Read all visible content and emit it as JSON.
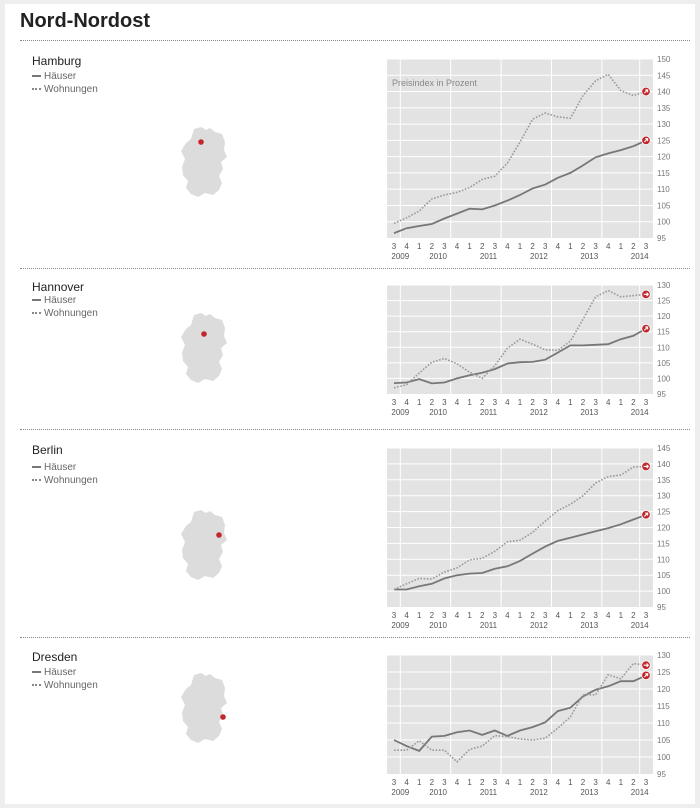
{
  "page": {
    "title": "Nord-Nordost"
  },
  "legend": {
    "houses": "Häuser",
    "flats": "Wohnungen"
  },
  "colors": {
    "houses_line": "#777777",
    "flats_line": "#999999",
    "marker": "#c1272d",
    "plot_bg": "#e3e3e3",
    "map": "#dcdcdc"
  },
  "x_tick_labels": [
    "3",
    "4",
    "1",
    "2",
    "3",
    "4",
    "1",
    "2",
    "3",
    "4",
    "1",
    "2",
    "3",
    "4",
    "1",
    "2",
    "3",
    "4",
    "1",
    "2",
    "3"
  ],
  "x_year_labels": [
    "2009",
    "2010",
    "2011",
    "2012",
    "2013",
    "2014"
  ],
  "chart_data": [
    {
      "type": "line",
      "title": "Hamburg",
      "ylabel": "Preisindex in Prozent",
      "ylim": [
        95,
        150
      ],
      "yticks": [
        95,
        100,
        105,
        110,
        115,
        120,
        125,
        130,
        135,
        140,
        145,
        150
      ],
      "x": [
        "2009-Q3",
        "2009-Q4",
        "2010-Q1",
        "2010-Q2",
        "2010-Q3",
        "2010-Q4",
        "2011-Q1",
        "2011-Q2",
        "2011-Q3",
        "2011-Q4",
        "2012-Q1",
        "2012-Q2",
        "2012-Q3",
        "2012-Q4",
        "2013-Q1",
        "2013-Q2",
        "2013-Q3",
        "2013-Q4",
        "2014-Q1",
        "2014-Q2",
        "2014-Q3"
      ],
      "series": [
        {
          "name": "Häuser",
          "style": "solid",
          "values": [
            96.5,
            98,
            98.7,
            99.3,
            101,
            102.5,
            104,
            103.8,
            105,
            106.5,
            108.2,
            110.2,
            111.4,
            113.5,
            115,
            117.3,
            119.8,
            121,
            122,
            123.2,
            125
          ]
        },
        {
          "name": "Wohnungen",
          "style": "dotted",
          "values": [
            99.5,
            101.2,
            103.3,
            107,
            108.2,
            109,
            110.5,
            113,
            114,
            118,
            124.5,
            131.5,
            133.4,
            132.2,
            131.8,
            138.8,
            143.3,
            145.3,
            140.3,
            138.8,
            140
          ]
        }
      ]
    },
    {
      "type": "line",
      "title": "Hannover",
      "ylim": [
        95,
        130
      ],
      "yticks": [
        95,
        100,
        105,
        110,
        115,
        120,
        125,
        130
      ],
      "x": [
        "2009-Q3",
        "2009-Q4",
        "2010-Q1",
        "2010-Q2",
        "2010-Q3",
        "2010-Q4",
        "2011-Q1",
        "2011-Q2",
        "2011-Q3",
        "2011-Q4",
        "2012-Q1",
        "2012-Q2",
        "2012-Q3",
        "2012-Q4",
        "2013-Q1",
        "2013-Q2",
        "2013-Q3",
        "2013-Q4",
        "2014-Q1",
        "2014-Q2",
        "2014-Q3"
      ],
      "series": [
        {
          "name": "Häuser",
          "style": "solid",
          "values": [
            98.5,
            98.7,
            99.8,
            98.4,
            98.7,
            100,
            101,
            101.8,
            103,
            104.8,
            105.2,
            105.3,
            106,
            108.3,
            110.6,
            110.6,
            110.8,
            111,
            112.6,
            113.7,
            116
          ]
        },
        {
          "name": "Wohnungen",
          "style": "dotted",
          "values": [
            97,
            98,
            101.7,
            105.2,
            106.4,
            104.7,
            102,
            100,
            104.1,
            109.7,
            112.6,
            111,
            109.2,
            109,
            112,
            119,
            126.2,
            128.2,
            126.2,
            126.6,
            127
          ]
        }
      ]
    },
    {
      "type": "line",
      "title": "Berlin",
      "ylim": [
        95,
        145
      ],
      "yticks": [
        95,
        100,
        105,
        110,
        115,
        120,
        125,
        130,
        135,
        140,
        145
      ],
      "x": [
        "2009-Q3",
        "2009-Q4",
        "2010-Q1",
        "2010-Q2",
        "2010-Q3",
        "2010-Q4",
        "2011-Q1",
        "2011-Q2",
        "2011-Q3",
        "2011-Q4",
        "2012-Q1",
        "2012-Q2",
        "2012-Q3",
        "2012-Q4",
        "2013-Q1",
        "2013-Q2",
        "2013-Q3",
        "2013-Q4",
        "2014-Q1",
        "2014-Q2",
        "2014-Q3"
      ],
      "series": [
        {
          "name": "Häuser",
          "style": "solid",
          "values": [
            100.5,
            100.5,
            101.5,
            102.3,
            104,
            105,
            105.5,
            105.7,
            107,
            107.8,
            109.5,
            111.8,
            114,
            115.8,
            116.8,
            117.8,
            118.8,
            119.8,
            121,
            122.5,
            124
          ]
        },
        {
          "name": "Wohnungen",
          "style": "dotted",
          "values": [
            100.5,
            102.3,
            104,
            103.8,
            106,
            107.3,
            109.8,
            110.3,
            112.5,
            115.5,
            116,
            118.5,
            122,
            125.3,
            127.3,
            130,
            134,
            136,
            136.5,
            139,
            139.2
          ]
        }
      ]
    },
    {
      "type": "line",
      "title": "Dresden",
      "ylim": [
        95,
        130
      ],
      "yticks": [
        95,
        100,
        105,
        110,
        115,
        120,
        125,
        130
      ],
      "x": [
        "2009-Q3",
        "2009-Q4",
        "2010-Q1",
        "2010-Q2",
        "2010-Q3",
        "2010-Q4",
        "2011-Q1",
        "2011-Q2",
        "2011-Q3",
        "2011-Q4",
        "2012-Q1",
        "2012-Q2",
        "2012-Q3",
        "2012-Q4",
        "2013-Q1",
        "2013-Q2",
        "2013-Q3",
        "2013-Q4",
        "2014-Q1",
        "2014-Q2",
        "2014-Q3"
      ],
      "series": [
        {
          "name": "Häuser",
          "style": "solid",
          "values": [
            105,
            103.2,
            101.8,
            106,
            106.2,
            107.3,
            107.8,
            106.5,
            107.8,
            106.2,
            107.8,
            108.8,
            110.2,
            113.5,
            114.5,
            117.8,
            119.8,
            120.8,
            122.3,
            122.3,
            124
          ]
        },
        {
          "name": "Wohnungen",
          "style": "dotted",
          "values": [
            102,
            102,
            104.8,
            102,
            102,
            98.6,
            102.2,
            103.2,
            106.3,
            106,
            105.3,
            105,
            105.5,
            108.5,
            111.8,
            118.3,
            118.3,
            124.2,
            123,
            127.5,
            127
          ]
        }
      ]
    }
  ]
}
